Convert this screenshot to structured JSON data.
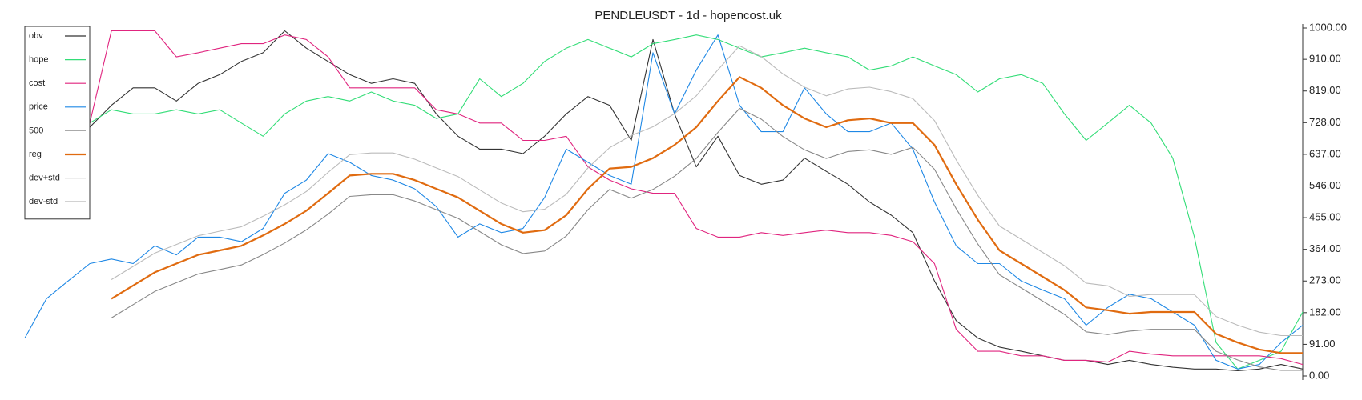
{
  "chart_data": {
    "type": "line",
    "title": "PENDLEUSDT - 1d - hopencost.uk",
    "ylim": [
      0,
      1000
    ],
    "yticks": [
      {
        "value": 0,
        "label": "0.00"
      },
      {
        "value": 91,
        "label": "91.00"
      },
      {
        "value": 182,
        "label": "182.00"
      },
      {
        "value": 273,
        "label": "273.00"
      },
      {
        "value": 364,
        "label": "364.00"
      },
      {
        "value": 455,
        "label": "455.00"
      },
      {
        "value": 546,
        "label": "546.00"
      },
      {
        "value": 637,
        "label": "637.00"
      },
      {
        "value": 728,
        "label": "728.00"
      },
      {
        "value": 819,
        "label": "819.00"
      },
      {
        "value": 910,
        "label": "910.00"
      },
      {
        "value": 1000,
        "label": "1000.00"
      }
    ],
    "legend": "top-left",
    "series": [
      {
        "name": "obv",
        "color": "#333333",
        "values": [
          null,
          null,
          null,
          715,
          778,
          828,
          828,
          790,
          841,
          866,
          904,
          929,
          992,
          942,
          904,
          866,
          841,
          854,
          841,
          753,
          689,
          652,
          652,
          639,
          689,
          753,
          803,
          778,
          677,
          967,
          753,
          601,
          689,
          576,
          551,
          563,
          626,
          588,
          551,
          500,
          462,
          412,
          273,
          159,
          109,
          83,
          71,
          58,
          45,
          45,
          33,
          45,
          33,
          25,
          20,
          20,
          15,
          20,
          33,
          20
        ]
      },
      {
        "name": "hope",
        "color": "#33dd77",
        "values": [
          null,
          null,
          null,
          727,
          765,
          753,
          753,
          765,
          753,
          765,
          727,
          689,
          753,
          790,
          803,
          790,
          816,
          790,
          778,
          740,
          753,
          854,
          803,
          841,
          904,
          942,
          967,
          942,
          917,
          955,
          967,
          980,
          967,
          942,
          917,
          929,
          942,
          929,
          917,
          879,
          891,
          917,
          891,
          866,
          816,
          854,
          866,
          841,
          753,
          677,
          727,
          778,
          727,
          626,
          399,
          96,
          20,
          45,
          71,
          184
        ]
      },
      {
        "name": "cost",
        "color": "#e0257f",
        "values": [
          null,
          null,
          null,
          727,
          992,
          992,
          992,
          917,
          929,
          942,
          955,
          955,
          980,
          967,
          917,
          828,
          828,
          828,
          828,
          765,
          753,
          727,
          727,
          677,
          677,
          689,
          601,
          563,
          538,
          525,
          525,
          424,
          399,
          399,
          412,
          404,
          412,
          419,
          412,
          412,
          404,
          386,
          323,
          134,
          71,
          71,
          58,
          58,
          45,
          45,
          40,
          71,
          63,
          58,
          58,
          58,
          58,
          58,
          50,
          33
        ]
      },
      {
        "name": "price",
        "color": "#1f88e5",
        "values": [
          109,
          222,
          273,
          323,
          336,
          323,
          374,
          348,
          399,
          399,
          386,
          424,
          525,
          563,
          639,
          614,
          576,
          563,
          538,
          487,
          399,
          437,
          412,
          424,
          513,
          652,
          614,
          576,
          551,
          929,
          753,
          879,
          980,
          778,
          702,
          702,
          828,
          753,
          702,
          702,
          727,
          652,
          500,
          374,
          323,
          323,
          273,
          247,
          222,
          146,
          197,
          235,
          222,
          184,
          146,
          45,
          20,
          33,
          96,
          146
        ]
      },
      {
        "name": "500",
        "color": "#aaaaaa",
        "values": [
          500,
          500,
          500,
          500,
          500,
          500,
          500,
          500,
          500,
          500,
          500,
          500,
          500,
          500,
          500,
          500,
          500,
          500,
          500,
          500,
          500,
          500,
          500,
          500,
          500,
          500,
          500,
          500,
          500,
          500,
          500,
          500,
          500,
          500,
          500,
          500,
          500,
          500,
          500,
          500,
          500,
          500,
          500,
          500,
          500,
          500,
          500,
          500,
          500,
          500,
          500,
          500,
          500,
          500,
          500,
          500,
          500,
          500,
          500,
          500
        ]
      },
      {
        "name": "reg",
        "color": "#e06b10",
        "values": [
          null,
          null,
          null,
          null,
          222,
          260,
          298,
          323,
          348,
          361,
          374,
          404,
          437,
          475,
          525,
          576,
          581,
          581,
          563,
          538,
          513,
          475,
          437,
          412,
          419,
          462,
          538,
          596,
          601,
          626,
          664,
          715,
          790,
          859,
          828,
          778,
          740,
          715,
          735,
          740,
          727,
          727,
          664,
          551,
          449,
          361,
          323,
          285,
          247,
          197,
          189,
          179,
          184,
          184,
          184,
          121,
          96,
          76,
          66,
          66
        ]
      },
      {
        "name": "dev+std",
        "color": "#bbbbbb",
        "values": [
          null,
          null,
          null,
          null,
          277,
          315,
          353,
          378,
          403,
          416,
          429,
          459,
          492,
          530,
          585,
          636,
          641,
          641,
          623,
          598,
          573,
          535,
          497,
          472,
          479,
          522,
          598,
          656,
          691,
          716,
          754,
          805,
          880,
          949,
          918,
          868,
          830,
          805,
          825,
          830,
          817,
          797,
          734,
          621,
          519,
          431,
          393,
          355,
          317,
          267,
          259,
          229,
          234,
          234,
          234,
          171,
          146,
          126,
          116,
          116
        ]
      },
      {
        "name": "dev-std",
        "color": "#888888",
        "values": [
          null,
          null,
          null,
          null,
          167,
          205,
          243,
          268,
          293,
          306,
          319,
          349,
          382,
          420,
          465,
          516,
          521,
          521,
          503,
          478,
          453,
          415,
          377,
          352,
          359,
          402,
          478,
          536,
          511,
          536,
          574,
          625,
          700,
          769,
          738,
          688,
          650,
          625,
          645,
          650,
          637,
          657,
          594,
          481,
          379,
          291,
          253,
          215,
          177,
          127,
          119,
          129,
          134,
          134,
          134,
          71,
          46,
          26,
          16,
          16
        ]
      }
    ]
  }
}
